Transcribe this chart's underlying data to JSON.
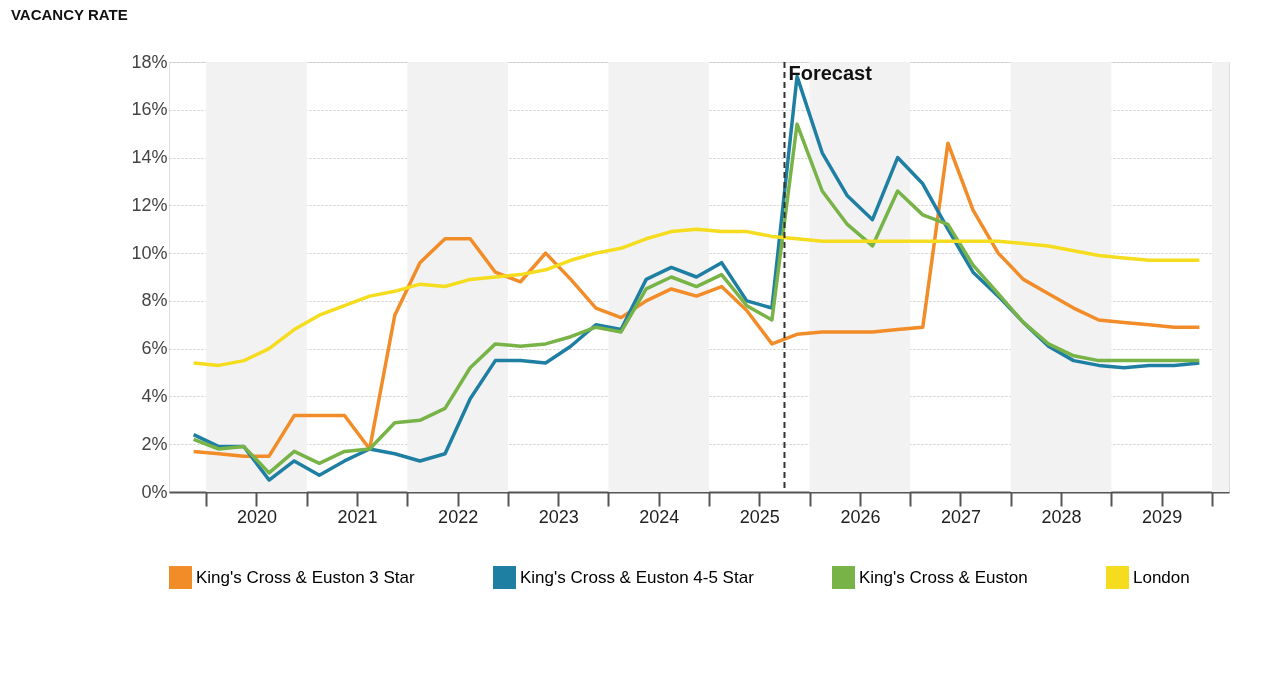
{
  "chart_data": {
    "type": "line",
    "title": "VACANCY RATE",
    "x": [
      2019.875,
      2020.125,
      2020.375,
      2020.625,
      2020.875,
      2021.125,
      2021.375,
      2021.625,
      2021.875,
      2022.125,
      2022.375,
      2022.625,
      2022.875,
      2023.125,
      2023.375,
      2023.625,
      2023.875,
      2024.125,
      2024.375,
      2024.625,
      2024.875,
      2025.125,
      2025.375,
      2025.625,
      2025.875,
      2026.125,
      2026.375,
      2026.625,
      2026.875,
      2027.125,
      2027.375,
      2027.625,
      2027.875,
      2028.125,
      2028.375,
      2028.625,
      2028.875,
      2029.125,
      2029.375,
      2029.625,
      2029.875
    ],
    "series": [
      {
        "name": "King's Cross & Euston 3 Star",
        "color": "#f28c28",
        "values": [
          1.7,
          1.6,
          1.5,
          1.5,
          3.2,
          3.2,
          3.2,
          1.8,
          7.4,
          9.6,
          10.6,
          10.6,
          9.2,
          8.8,
          10.0,
          8.9,
          7.7,
          7.3,
          8.0,
          8.5,
          8.2,
          8.6,
          7.6,
          6.2,
          6.6,
          6.7,
          6.7,
          6.7,
          6.8,
          6.9,
          14.6,
          11.8,
          10.0,
          8.9,
          8.3,
          7.7,
          7.2,
          7.1,
          7.0,
          6.9,
          6.9
        ]
      },
      {
        "name": "King's Cross & Euston 4-5 Star",
        "color": "#1f7fa3",
        "values": [
          2.4,
          1.9,
          1.9,
          0.5,
          1.3,
          0.7,
          1.3,
          1.8,
          1.6,
          1.3,
          1.6,
          3.9,
          5.5,
          5.5,
          5.4,
          6.1,
          7.0,
          6.8,
          8.9,
          9.4,
          9.0,
          9.6,
          8.0,
          7.7,
          17.4,
          14.2,
          12.4,
          11.4,
          14.0,
          12.9,
          11.0,
          9.2,
          8.2,
          7.1,
          6.1,
          5.5,
          5.3,
          5.2,
          5.3,
          5.3,
          5.4
        ]
      },
      {
        "name": "King's Cross & Euston",
        "color": "#77b347",
        "values": [
          2.2,
          1.8,
          1.9,
          0.8,
          1.7,
          1.2,
          1.7,
          1.8,
          2.9,
          3.0,
          3.5,
          5.2,
          6.2,
          6.1,
          6.2,
          6.5,
          6.9,
          6.7,
          8.5,
          9.0,
          8.6,
          9.1,
          7.8,
          7.2,
          15.4,
          12.6,
          11.2,
          10.3,
          12.6,
          11.6,
          11.2,
          9.5,
          8.3,
          7.1,
          6.2,
          5.7,
          5.5,
          5.5,
          5.5,
          5.5,
          5.5
        ]
      },
      {
        "name": "London",
        "color": "#f5dc1e",
        "values": [
          5.4,
          5.3,
          5.5,
          6.0,
          6.8,
          7.4,
          7.8,
          8.2,
          8.4,
          8.7,
          8.6,
          8.9,
          9.0,
          9.1,
          9.3,
          9.7,
          10.0,
          10.2,
          10.6,
          10.9,
          11.0,
          10.9,
          10.9,
          10.7,
          10.6,
          10.5,
          10.5,
          10.5,
          10.5,
          10.5,
          10.5,
          10.5,
          10.5,
          10.4,
          10.3,
          10.1,
          9.9,
          9.8,
          9.7,
          9.7,
          9.7
        ]
      }
    ],
    "xlim": [
      2019.63,
      2030.17
    ],
    "xticks": [
      {
        "value": 2020,
        "label": null
      },
      {
        "value": 2020.5,
        "label": "2020"
      },
      {
        "value": 2021,
        "label": null
      },
      {
        "value": 2021.5,
        "label": "2021"
      },
      {
        "value": 2022,
        "label": null
      },
      {
        "value": 2022.5,
        "label": "2022"
      },
      {
        "value": 2023,
        "label": null
      },
      {
        "value": 2023.5,
        "label": "2023"
      },
      {
        "value": 2024,
        "label": null
      },
      {
        "value": 2024.5,
        "label": "2024"
      },
      {
        "value": 2025,
        "label": null
      },
      {
        "value": 2025.5,
        "label": "2025"
      },
      {
        "value": 2026,
        "label": null
      },
      {
        "value": 2026.5,
        "label": "2026"
      },
      {
        "value": 2027,
        "label": null
      },
      {
        "value": 2027.5,
        "label": "2027"
      },
      {
        "value": 2028,
        "label": null
      },
      {
        "value": 2028.5,
        "label": "2028"
      },
      {
        "value": 2029,
        "label": null
      },
      {
        "value": 2029.5,
        "label": "2029"
      },
      {
        "value": 2030,
        "label": null
      }
    ],
    "ylim": [
      0,
      18
    ],
    "yticks": [
      {
        "value": 0,
        "label": "0%"
      },
      {
        "value": 2,
        "label": "2%"
      },
      {
        "value": 4,
        "label": "4%"
      },
      {
        "value": 6,
        "label": "6%"
      },
      {
        "value": 8,
        "label": "8%"
      },
      {
        "value": 10,
        "label": "10%"
      },
      {
        "value": 12,
        "label": "12%"
      },
      {
        "value": 14,
        "label": "14%"
      },
      {
        "value": 16,
        "label": "16%"
      },
      {
        "value": 18,
        "label": "18%"
      }
    ],
    "ref_lines": [
      {
        "axis": "x",
        "value": 2025.75,
        "label": "Forecast",
        "color": "#333333",
        "line_style": "dashed"
      }
    ],
    "bands": [
      {
        "axis": "x",
        "from": 2020,
        "to": 2021,
        "label": null,
        "color": "#f2f2f2"
      },
      {
        "axis": "x",
        "from": 2022,
        "to": 2023,
        "label": null,
        "color": "#f2f2f2"
      },
      {
        "axis": "x",
        "from": 2024,
        "to": 2025,
        "label": null,
        "color": "#f2f2f2"
      },
      {
        "axis": "x",
        "from": 2026,
        "to": 2027,
        "label": null,
        "color": "#f2f2f2"
      },
      {
        "axis": "x",
        "from": 2028,
        "to": 2029,
        "label": null,
        "color": "#f2f2f2"
      },
      {
        "axis": "x",
        "from": 2030,
        "to": 2030.17,
        "label": null,
        "color": "#f2f2f2"
      }
    ],
    "grid": "y",
    "legend": "bottom",
    "marker": "none",
    "line_style": "solid"
  }
}
